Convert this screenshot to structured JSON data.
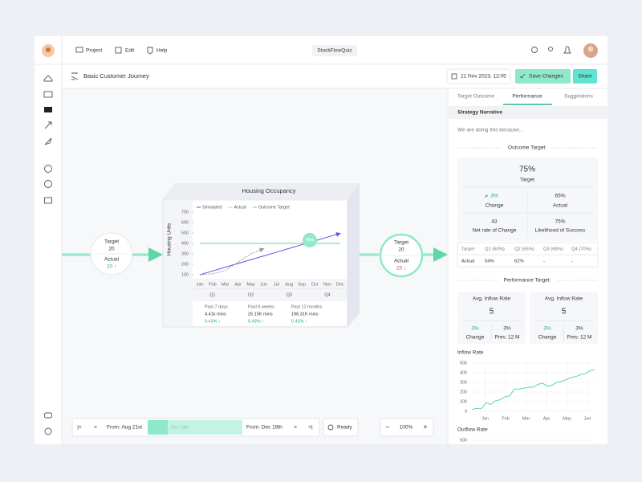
{
  "nav": {
    "items": [
      "Project",
      "Edit",
      "Help"
    ],
    "app_name": "StockFlowQuiz"
  },
  "toolbar": {
    "title": "Basic Customer Journey",
    "date": "21 Nov 2023, 12:05",
    "save": "Save Changes",
    "share": "Share"
  },
  "nodes": [
    {
      "target_label": "Target",
      "target": "20",
      "actual_label": "Actual",
      "actual": "20 ↑"
    },
    {
      "target_label": "Target",
      "target": "20",
      "actual_label": "Actual",
      "actual": "25 ↓"
    }
  ],
  "housing_chart": {
    "type": "line",
    "title": "Housing Occupancy",
    "y_label": "Housing Units",
    "categories": [
      "Jan",
      "Feb",
      "Mar",
      "Apr",
      "May",
      "Jun",
      "Jul",
      "Aug",
      "Sep",
      "Oct",
      "Nov",
      "Dec"
    ],
    "quarters": [
      "Q1",
      "Q2",
      "Q3",
      "Q4"
    ],
    "ylim": [
      100,
      700
    ],
    "yticks": [
      100,
      200,
      300,
      400,
      500,
      600,
      700
    ],
    "series": [
      {
        "name": "Simulated",
        "color": "#6a4ee0",
        "values": [
          100,
          136,
          172,
          208,
          244,
          280,
          316,
          352,
          388,
          424,
          460,
          496
        ]
      },
      {
        "name": "Actual",
        "color": "#9a9a9a",
        "values": [
          100,
          110,
          140,
          220,
          300,
          350,
          null,
          null,
          null,
          null,
          null,
          null
        ]
      },
      {
        "name": "Outcome Target",
        "color": "#5fd6a8",
        "values": [
          400,
          400,
          400,
          400,
          400,
          400,
          400,
          400,
          400,
          400,
          400,
          400
        ]
      }
    ],
    "badge": "75%",
    "stats": [
      {
        "period": "Past 7 days",
        "total": "4.41k mins",
        "change": "0.43% ↑"
      },
      {
        "period": "Past 6 weeks",
        "total": "26.15K mins",
        "change": "0.43% ↑"
      },
      {
        "period": "Past 12 months",
        "total": "198.31K mins",
        "change": "0.43% ↑"
      }
    ]
  },
  "timeline": {
    "from": "From: Aug 21st",
    "range_end": "Dec 19th",
    "to": "From: Dec 19th",
    "status": "Ready",
    "zoom": "100%"
  },
  "panel": {
    "tabs": [
      "Target Outcome",
      "Performance",
      "Suggestions"
    ],
    "narrative_title": "Strategy Narrative",
    "narrative": "We are doing this because...",
    "outcome_title": "Outcome Target:",
    "outcome": {
      "value": "75%",
      "label": "Target"
    },
    "metrics": [
      {
        "value": "3%",
        "label": "Change"
      },
      {
        "value": "65%",
        "label": "Actual"
      },
      {
        "value": "43",
        "label": "Net rate of Change"
      },
      {
        "value": "75%",
        "label": "Likelihood of Success"
      }
    ],
    "table": {
      "rows": [
        [
          "Target",
          "Q1 (60%)",
          "Q2 (65%)",
          "Q3 (68%)",
          "Q4 (70%)"
        ],
        [
          "Actual",
          "54%",
          "62%",
          "-",
          "-"
        ]
      ]
    },
    "performance_title": "Performance Target:",
    "rate_cards": [
      {
        "title": "Avg. Inflow Rate",
        "value": "5",
        "change": "3%",
        "change_label": "Change",
        "prev": "3%",
        "prev_label": "Prev. 12 M"
      },
      {
        "title": "Avg. Inflow Rate",
        "value": "5",
        "change": "3%",
        "change_label": "Change",
        "prev": "3%",
        "prev_label": "Prev. 12 M"
      }
    ],
    "inflow_chart": {
      "type": "line",
      "title": "Inflow Rate",
      "categories": [
        "Jan",
        "Feb",
        "Mar",
        "Apr",
        "May",
        "Jun"
      ],
      "ylim": [
        0,
        500
      ],
      "yticks": [
        0,
        100,
        200,
        300,
        400,
        500
      ],
      "color": "#5fd6a8",
      "values": [
        20,
        30,
        25,
        90,
        70,
        110,
        120,
        150,
        160,
        230,
        230,
        240,
        250,
        250,
        280,
        290,
        260,
        270,
        300,
        310,
        330,
        350,
        360,
        380,
        390,
        420,
        430
      ]
    },
    "outflow_chart": {
      "title": "Outflow Rate",
      "yticks": [
        500
      ]
    }
  }
}
